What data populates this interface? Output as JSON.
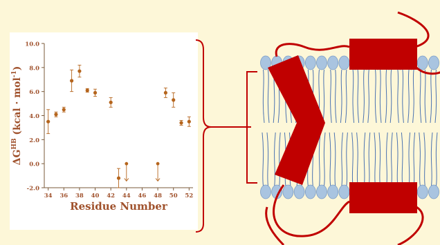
{
  "colors": {
    "background": "#fdf7d8",
    "panel": "#ffffff",
    "data": "#b5651d",
    "axis_text": "#a0522d",
    "protein": "#c00000",
    "lipid_head": "#a9c4e0",
    "lipid_head_stroke": "#7a9cc6",
    "lipid_tail": "#4a72b0"
  },
  "chart_data": {
    "type": "scatter",
    "xlabel": "Residue Number",
    "ylabel": "ΔG",
    "ylabel_superscript": "HB",
    "ylabel_units": " (kcal · mol",
    "ylabel_units_sup": "-1",
    "ylabel_close": ")",
    "xlim": [
      33.5,
      52.5
    ],
    "ylim": [
      -2.0,
      10.0
    ],
    "x_ticks": [
      "34",
      "36",
      "38",
      "40",
      "42",
      "44",
      "46",
      "48",
      "50",
      "52"
    ],
    "y_ticks": [
      "-2.0",
      "0.0",
      "2.0",
      "4.0",
      "6.0",
      "8.0",
      "10.0"
    ],
    "grid": false,
    "points": [
      {
        "x": 34,
        "y": 3.5,
        "err": 1.0
      },
      {
        "x": 35,
        "y": 4.1,
        "err": 0.2
      },
      {
        "x": 36,
        "y": 4.5,
        "err": 0.2
      },
      {
        "x": 37,
        "y": 6.9,
        "err": 0.9
      },
      {
        "x": 38,
        "y": 7.7,
        "err": 0.5
      },
      {
        "x": 39,
        "y": 6.1,
        "err": 0.15
      },
      {
        "x": 40,
        "y": 5.9,
        "err": 0.3
      },
      {
        "x": 42,
        "y": 5.1,
        "err": 0.4
      },
      {
        "x": 43,
        "y": -1.2,
        "err": 0.8
      },
      {
        "x": 49,
        "y": 5.9,
        "err": 0.4
      },
      {
        "x": 50,
        "y": 5.3,
        "err": 0.6
      },
      {
        "x": 51,
        "y": 3.4,
        "err": 0.2
      },
      {
        "x": 52,
        "y": 3.5,
        "err": 0.4
      }
    ],
    "upper_bound_points": [
      {
        "x": 44,
        "y": 0.0
      },
      {
        "x": 48,
        "y": 0.0
      }
    ]
  },
  "illustration": {
    "transmembrane_helix": "chevron",
    "surface_helices": 2
  }
}
